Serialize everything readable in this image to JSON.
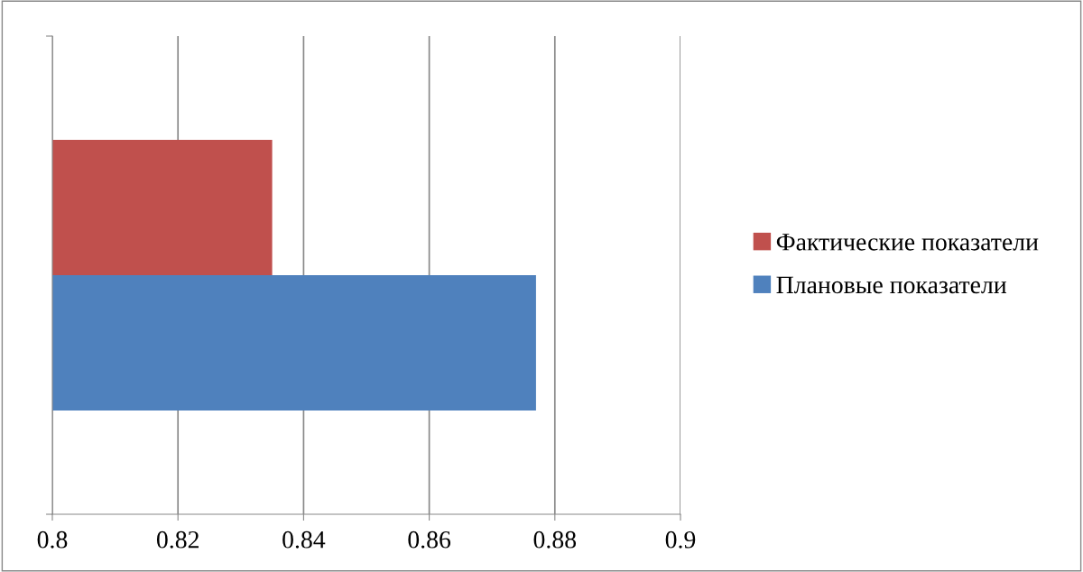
{
  "chart_data": {
    "type": "bar",
    "orientation": "horizontal",
    "categories": [
      null
    ],
    "series": [
      {
        "name": "Фактические показатели",
        "color": "#c0504d",
        "values": [
          0.835
        ]
      },
      {
        "name": "Плановые показатели",
        "color": "#4f81bd",
        "values": [
          0.877
        ]
      }
    ],
    "xlim": [
      0.8,
      0.9
    ],
    "xticks": [
      0.8,
      0.82,
      0.84,
      0.86,
      0.88,
      0.9
    ],
    "grid": "x",
    "legend": "right"
  }
}
